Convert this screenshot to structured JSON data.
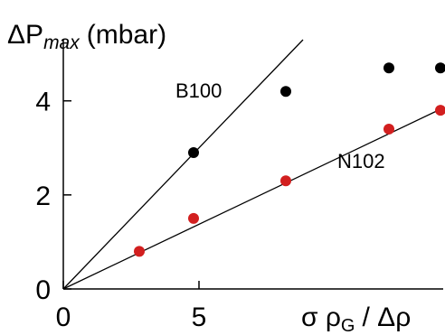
{
  "chart_data": {
    "type": "scatter",
    "y_title_main": "ΔP",
    "y_title_sub": "max",
    "y_title_unit": "(mbar)",
    "x_title_main": "σ ρ",
    "x_title_sub": "G",
    "x_title_tail": "/ Δρ",
    "xlim": [
      0,
      14
    ],
    "ylim": [
      0,
      5.3
    ],
    "x_ticks": [
      0,
      5
    ],
    "x_tick_labels": [
      "0",
      "5"
    ],
    "y_ticks": [
      0,
      2,
      4
    ],
    "y_tick_labels": [
      "0",
      "2",
      "4"
    ],
    "grid": false,
    "series": [
      {
        "name": "B100",
        "color": "#000000",
        "points": [
          [
            4.8,
            2.9
          ],
          [
            8.2,
            4.2
          ],
          [
            12.0,
            4.7
          ],
          [
            13.9,
            4.7
          ]
        ],
        "fit_slope": 0.6
      },
      {
        "name": "N102",
        "color": "#d21f1f",
        "points": [
          [
            2.8,
            0.8
          ],
          [
            4.8,
            1.5
          ],
          [
            8.2,
            2.3
          ],
          [
            12.0,
            3.4
          ],
          [
            13.9,
            3.8
          ]
        ],
        "fit_slope": 0.275
      }
    ]
  }
}
